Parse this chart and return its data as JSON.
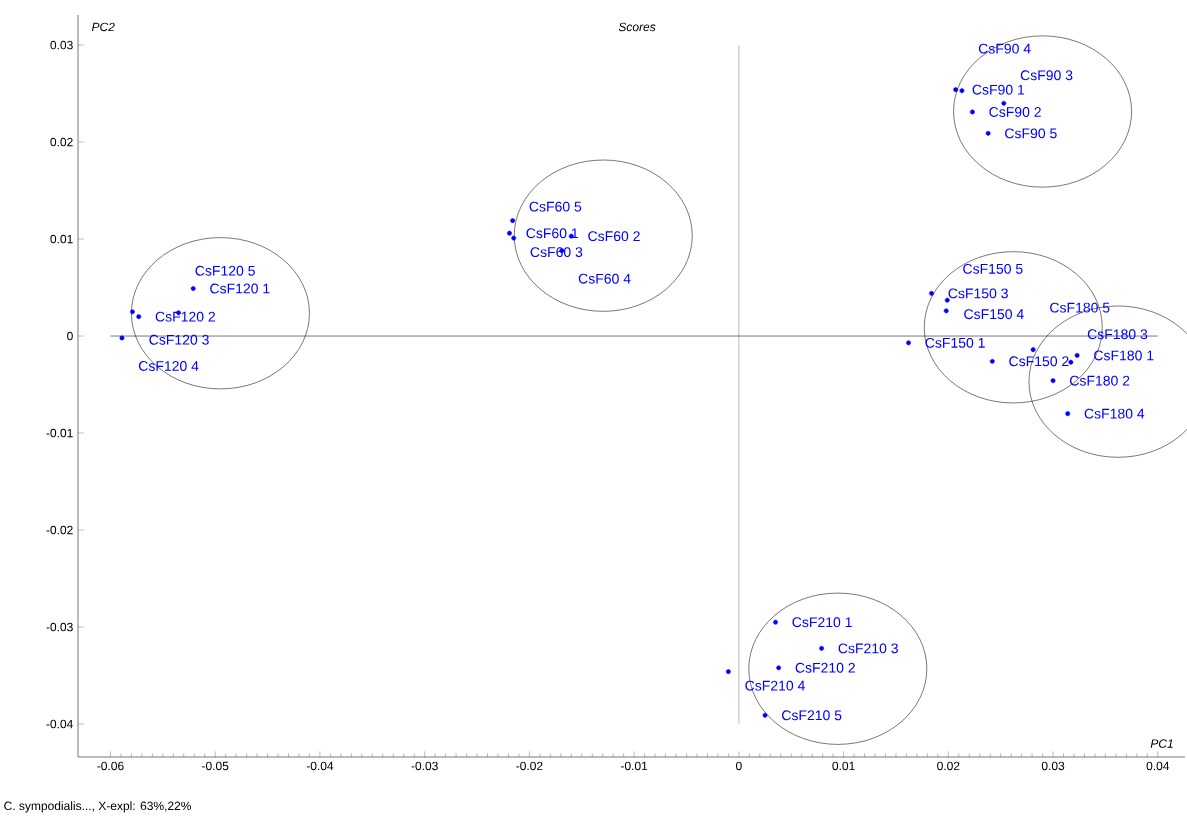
{
  "chart_data": {
    "type": "scatter",
    "title": "Scores",
    "xlabel": "PC1",
    "ylabel": "PC2",
    "xlim": [
      -0.0631,
      0.0426
    ],
    "ylim": [
      -0.0434,
      0.0331
    ],
    "xticks": [
      -0.06,
      -0.05,
      -0.04,
      -0.03,
      -0.02,
      -0.01,
      0,
      0.01,
      0.02,
      0.03,
      0.04
    ],
    "yticks": [
      -0.04,
      -0.03,
      -0.02,
      -0.01,
      0,
      0.01,
      0.02,
      0.03
    ],
    "grid": false,
    "series": [
      {
        "color": "#0000ff",
        "x": [
          -0.0521,
          -0.0573,
          -0.0579,
          -0.0589,
          -0.0535
        ],
        "values": [
          0.0049,
          0.002,
          0.0025,
          -0.0002,
          0.0024
        ]
      },
      {
        "color": "#0000ff",
        "x": [
          -0.0219,
          -0.016,
          -0.0215,
          -0.0169,
          -0.0216
        ],
        "values": [
          0.0106,
          0.0103,
          0.0101,
          0.0088,
          0.0119
        ]
      },
      {
        "color": "#0000ff",
        "x": [
          0.0207,
          0.0223,
          0.0253,
          0.0213,
          0.0238
        ],
        "values": [
          0.0254,
          0.0231,
          0.024,
          0.0253,
          0.0209
        ]
      },
      {
        "color": "#0000ff",
        "x": [
          0.0162,
          0.0242,
          0.0184,
          0.0199,
          0.0198
        ],
        "values": [
          -0.0007,
          -0.0026,
          0.0044,
          0.0037,
          0.0026
        ]
      },
      {
        "color": "#0000ff",
        "x": [
          0.0323,
          0.03,
          0.0317,
          0.0314,
          0.0281
        ],
        "values": [
          -0.002,
          -0.0046,
          -0.0027,
          -0.008,
          -0.0014
        ]
      },
      {
        "color": "#0000ff",
        "x": [
          0.0035,
          0.0038,
          0.0079,
          -0.001,
          0.0025
        ],
        "values": [
          -0.0295,
          -0.0342,
          -0.0322,
          -0.0346,
          -0.0391
        ]
      }
    ],
    "ref_lines": [
      {
        "axis": "x",
        "value": 0,
        "color": "#808080"
      },
      {
        "axis": "y",
        "value": 0,
        "color": "#000000"
      }
    ],
    "annotations": [
      {
        "text": "CsF120 1",
        "x": -0.0521,
        "y": 0.0049
      },
      {
        "text": "CsF120 2",
        "x": -0.0573,
        "y": 0.002
      },
      {
        "text": "CsF120 3",
        "x": -0.0579,
        "y": 0.0025
      },
      {
        "text": "CsF120 4",
        "x": -0.0589,
        "y": -0.0002
      },
      {
        "text": "CsF120 5",
        "x": -0.0535,
        "y": 0.0024
      },
      {
        "text": "CsF60 1",
        "x": -0.0219,
        "y": 0.0106
      },
      {
        "text": "CsF60 2",
        "x": -0.016,
        "y": 0.0103
      },
      {
        "text": "CsF60 3",
        "x": -0.0215,
        "y": 0.0101
      },
      {
        "text": "CsF60 4",
        "x": -0.0169,
        "y": 0.0088
      },
      {
        "text": "CsF60 5",
        "x": -0.0216,
        "y": 0.0119
      },
      {
        "text": "CsF90 1",
        "x": 0.0207,
        "y": 0.0254
      },
      {
        "text": "CsF90 2",
        "x": 0.0223,
        "y": 0.0231
      },
      {
        "text": "CsF90 3",
        "x": 0.0253,
        "y": 0.024
      },
      {
        "text": "CsF90 4",
        "x": 0.0213,
        "y": 0.0253
      },
      {
        "text": "CsF90 5",
        "x": 0.0238,
        "y": 0.0209
      },
      {
        "text": "CsF150 1",
        "x": 0.0162,
        "y": -0.0007
      },
      {
        "text": "CsF150 2",
        "x": 0.0242,
        "y": -0.0026
      },
      {
        "text": "CsF150 3",
        "x": 0.0184,
        "y": 0.0044
      },
      {
        "text": "CsF150 4",
        "x": 0.0199,
        "y": 0.0037
      },
      {
        "text": "CsF150 5",
        "x": 0.0198,
        "y": 0.0026
      },
      {
        "text": "CsF180 1",
        "x": 0.0323,
        "y": -0.002
      },
      {
        "text": "CsF180 2",
        "x": 0.03,
        "y": -0.0046
      },
      {
        "text": "CsF180 3",
        "x": 0.0317,
        "y": -0.0027
      },
      {
        "text": "CsF180 4",
        "x": 0.0314,
        "y": -0.008
      },
      {
        "text": "CsF180 5",
        "x": 0.0281,
        "y": -0.0014
      },
      {
        "text": "CsF210 1",
        "x": 0.0035,
        "y": -0.0295
      },
      {
        "text": "CsF210 2",
        "x": 0.0038,
        "y": -0.0342
      },
      {
        "text": "CsF210 3",
        "x": 0.0079,
        "y": -0.0322
      },
      {
        "text": "CsF210 4",
        "x": -0.001,
        "y": -0.0346
      },
      {
        "text": "CsF210 5",
        "x": 0.0025,
        "y": -0.0391
      },
      "C. sympodialis..., X-expl: 63%,22%"
    ]
  }
}
